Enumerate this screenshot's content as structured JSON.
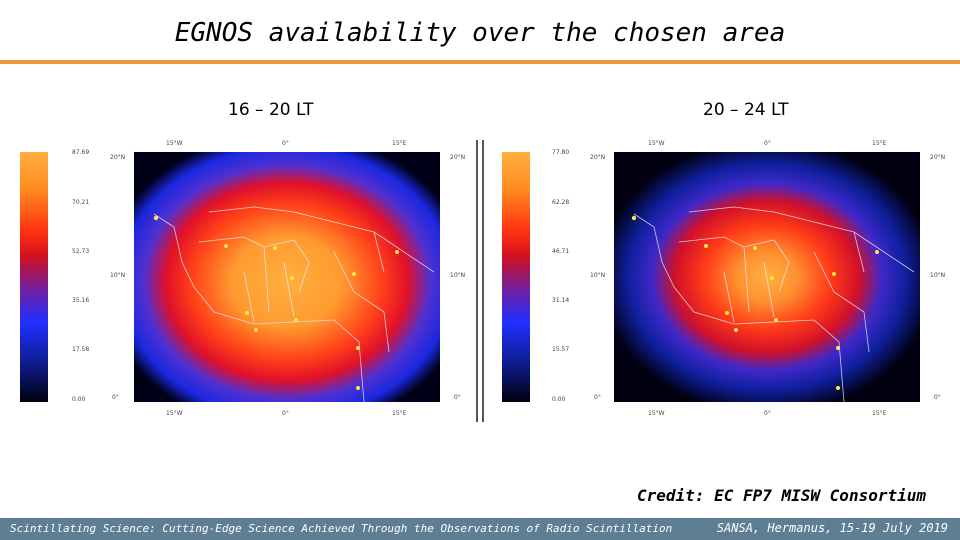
{
  "title": "EGNOS availability over the chosen area",
  "panels": [
    {
      "subtitle": "16 – 20 LT",
      "colorbar_ticks": [
        "87.69",
        "70.21",
        "52.73",
        "35.16",
        "17.58",
        "0.00"
      ],
      "lon_labels": [
        "15°W",
        "0°",
        "15°E"
      ],
      "lat_labels": [
        "20°N",
        "10°N",
        "0°"
      ]
    },
    {
      "subtitle": "20 – 24 LT",
      "colorbar_ticks": [
        "77.80",
        "62.28",
        "46.71",
        "31.14",
        "15.57",
        "0.00"
      ],
      "lon_labels": [
        "15°W",
        "0°",
        "15°E"
      ],
      "lat_labels": [
        "20°N",
        "10°N",
        "0°"
      ]
    }
  ],
  "credit": "Credit: EC FP7 MISW Consortium",
  "footer": {
    "left": "Scintillating Science: Cutting-Edge Science Achieved Through the Observations of Radio Scintillation",
    "right": "SANSA, Hermanus, 15-19 July 2019"
  },
  "colors": {
    "accent_rule": "#e89b3a",
    "footer_bg": "#5e7e94"
  }
}
